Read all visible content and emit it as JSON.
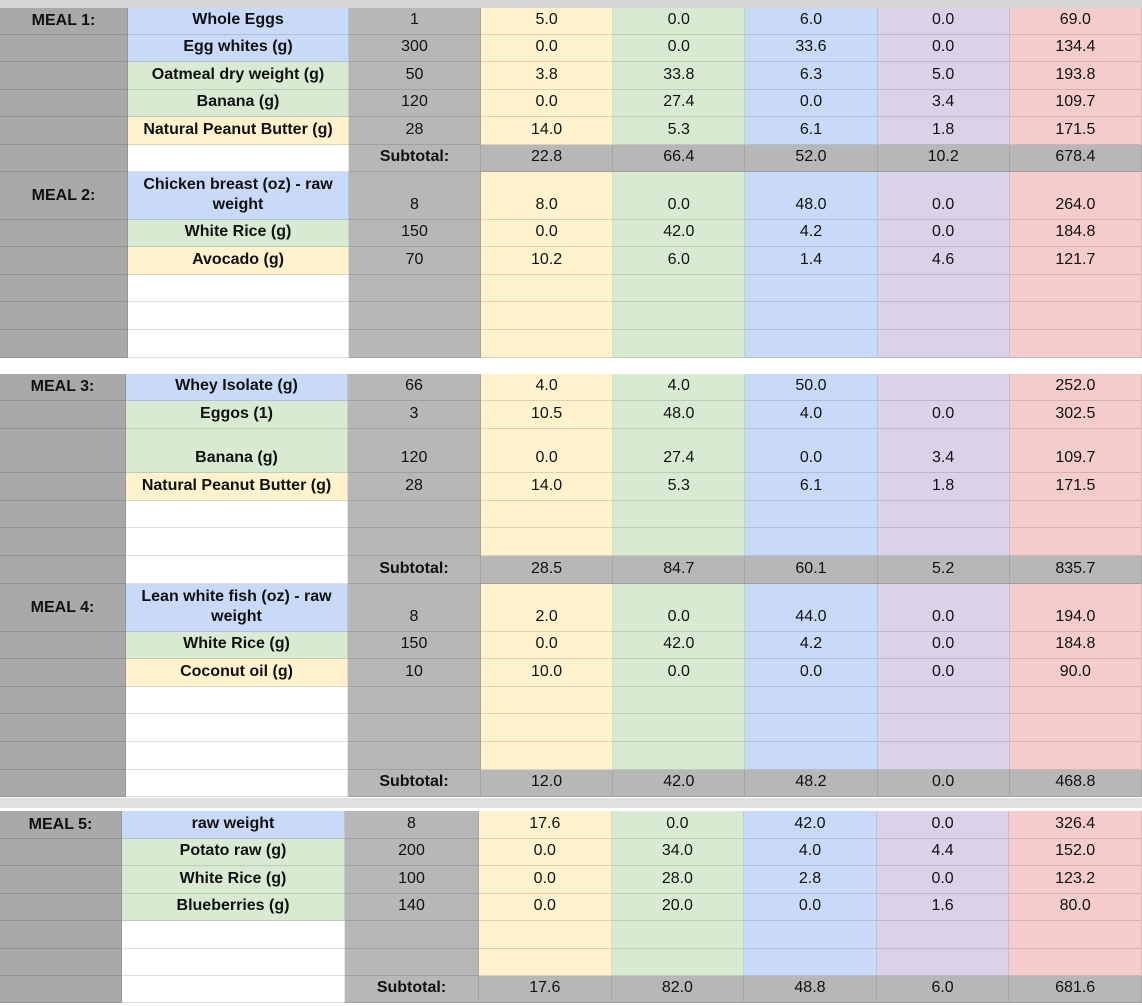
{
  "colors": {
    "label": "#a9a9a9",
    "quantity": "#b7b7b7",
    "fat": "#fff2cc",
    "carbs": "#d9ead3",
    "protein": "#c9daf8",
    "fiber": "#d9d2e9",
    "calories": "#f4cccc"
  },
  "panels": [
    {
      "rows": [
        {
          "label": "MEAL 1:",
          "name": "Whole Eggs",
          "color": "blue",
          "v": [
            "1",
            "5.0",
            "0.0",
            "6.0",
            "0.0",
            "69.0"
          ]
        },
        {
          "name": "Egg whites (g)",
          "color": "blue",
          "v": [
            "300",
            "0.0",
            "0.0",
            "33.6",
            "0.0",
            "134.4"
          ]
        },
        {
          "name": "Oatmeal dry weight (g)",
          "color": "green",
          "v": [
            "50",
            "3.8",
            "33.8",
            "6.3",
            "5.0",
            "193.8"
          ]
        },
        {
          "name": "Banana (g)",
          "color": "green",
          "v": [
            "120",
            "0.0",
            "27.4",
            "0.0",
            "3.4",
            "109.7"
          ]
        },
        {
          "name": "Natural Peanut Butter (g)",
          "color": "yellow",
          "v": [
            "28",
            "14.0",
            "5.3",
            "6.1",
            "1.8",
            "171.5"
          ]
        },
        {
          "sub": true,
          "name": "",
          "color": "white",
          "v": [
            "Subtotal:",
            "22.8",
            "66.4",
            "52.0",
            "10.2",
            "678.4"
          ]
        },
        {
          "label": "MEAL 2:",
          "name": "Chicken breast (oz) - raw weight",
          "color": "blue",
          "v": [
            "8",
            "8.0",
            "0.0",
            "48.0",
            "0.0",
            "264.0"
          ]
        },
        {
          "name": "White Rice  (g)",
          "color": "green",
          "v": [
            "150",
            "0.0",
            "42.0",
            "4.2",
            "0.0",
            "184.8"
          ]
        },
        {
          "name": "Avocado (g)",
          "color": "yellow",
          "v": [
            "70",
            "10.2",
            "6.0",
            "1.4",
            "4.6",
            "121.7"
          ]
        },
        {
          "name": "",
          "color": "white",
          "v": [
            "",
            "",
            "",
            "",
            "",
            ""
          ]
        },
        {
          "name": "",
          "color": "white",
          "v": [
            "",
            "",
            "",
            "",
            "",
            ""
          ]
        },
        {
          "name": "",
          "color": "white",
          "v": [
            "",
            "",
            "",
            "",
            "",
            ""
          ]
        }
      ]
    },
    {
      "rows": [
        {
          "label": "MEAL 3:",
          "name": "Whey Isolate (g)",
          "color": "blue",
          "v": [
            "66",
            "4.0",
            "4.0",
            "50.0",
            "",
            "252.0"
          ]
        },
        {
          "name": "Eggos (1)",
          "color": "green",
          "v": [
            "3",
            "10.5",
            "48.0",
            "4.0",
            "0.0",
            "302.5"
          ]
        },
        {
          "name": "Banana (g)",
          "color": "green",
          "v": [
            "120",
            "0.0",
            "27.4",
            "0.0",
            "3.4",
            "109.7"
          ]
        },
        {
          "name": "Natural Peanut Butter (g)",
          "color": "yellow",
          "v": [
            "28",
            "14.0",
            "5.3",
            "6.1",
            "1.8",
            "171.5"
          ]
        },
        {
          "name": "",
          "color": "white",
          "v": [
            "",
            "",
            "",
            "",
            "",
            ""
          ]
        },
        {
          "name": "",
          "color": "white",
          "v": [
            "",
            "",
            "",
            "",
            "",
            ""
          ]
        },
        {
          "sub": true,
          "name": "",
          "color": "white",
          "v": [
            "Subtotal:",
            "28.5",
            "84.7",
            "60.1",
            "5.2",
            "835.7"
          ]
        },
        {
          "label": "MEAL 4:",
          "name": "Lean white fish (oz) - raw weight",
          "color": "blue",
          "v": [
            "8",
            "2.0",
            "0.0",
            "44.0",
            "0.0",
            "194.0"
          ]
        },
        {
          "name": "White Rice  (g)",
          "color": "green",
          "v": [
            "150",
            "0.0",
            "42.0",
            "4.2",
            "0.0",
            "184.8"
          ]
        },
        {
          "name": "Coconut oil (g)",
          "color": "yellow",
          "v": [
            "10",
            "10.0",
            "0.0",
            "0.0",
            "0.0",
            "90.0"
          ]
        },
        {
          "name": "",
          "color": "white",
          "v": [
            "",
            "",
            "",
            "",
            "",
            ""
          ]
        },
        {
          "name": "",
          "color": "white",
          "v": [
            "",
            "",
            "",
            "",
            "",
            ""
          ]
        },
        {
          "name": "",
          "color": "white",
          "v": [
            "",
            "",
            "",
            "",
            "",
            ""
          ]
        },
        {
          "sub": true,
          "name": "",
          "color": "white",
          "v": [
            "Subtotal:",
            "12.0",
            "42.0",
            "48.2",
            "0.0",
            "468.8"
          ]
        }
      ]
    },
    {
      "rows": [
        {
          "label": "MEAL 5:",
          "name": "raw weight",
          "color": "blue",
          "v": [
            "8",
            "17.6",
            "0.0",
            "42.0",
            "0.0",
            "326.4"
          ]
        },
        {
          "name": "Potato raw (g)",
          "color": "green",
          "v": [
            "200",
            "0.0",
            "34.0",
            "4.0",
            "4.4",
            "152.0"
          ]
        },
        {
          "name": "White Rice  (g)",
          "color": "green",
          "v": [
            "100",
            "0.0",
            "28.0",
            "2.8",
            "0.0",
            "123.2"
          ]
        },
        {
          "name": "Blueberries (g)",
          "color": "green",
          "v": [
            "140",
            "0.0",
            "20.0",
            "0.0",
            "1.6",
            "80.0"
          ]
        },
        {
          "name": "",
          "color": "white",
          "v": [
            "",
            "",
            "",
            "",
            "",
            ""
          ]
        },
        {
          "name": "",
          "color": "white",
          "v": [
            "",
            "",
            "",
            "",
            "",
            ""
          ]
        },
        {
          "sub": true,
          "name": "",
          "color": "white",
          "v": [
            "Subtotal:",
            "17.6",
            "82.0",
            "48.8",
            "6.0",
            "681.6"
          ]
        }
      ]
    }
  ]
}
